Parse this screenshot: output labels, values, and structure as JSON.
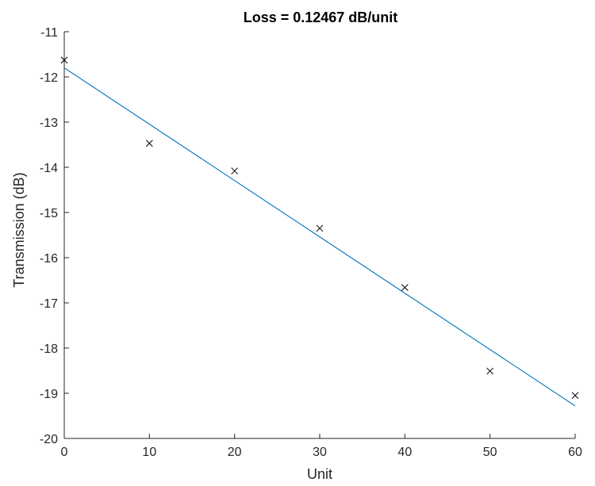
{
  "chart_data": {
    "type": "scatter",
    "title": "Loss = 0.12467 dB/unit",
    "xlabel": "Unit",
    "ylabel": "Transmission (dB)",
    "xlim": [
      0,
      60
    ],
    "ylim": [
      -20,
      -11
    ],
    "xticks": [
      "0",
      "10",
      "20",
      "30",
      "40",
      "50",
      "60"
    ],
    "yticks": [
      "-11",
      "-12",
      "-13",
      "-14",
      "-15",
      "-16",
      "-17",
      "-18",
      "-19",
      "-20"
    ],
    "grid": false,
    "series": [
      {
        "type": "scatter",
        "marker": "x",
        "color": "#000000",
        "x": [
          0,
          10,
          20,
          30,
          40,
          50,
          60
        ],
        "y": [
          -11.63,
          -13.47,
          -14.08,
          -15.35,
          -16.66,
          -18.51,
          -19.05
        ]
      },
      {
        "type": "line",
        "color": "#0072BD",
        "x": [
          0,
          60
        ],
        "y": [
          -11.8,
          -19.28
        ]
      }
    ]
  }
}
